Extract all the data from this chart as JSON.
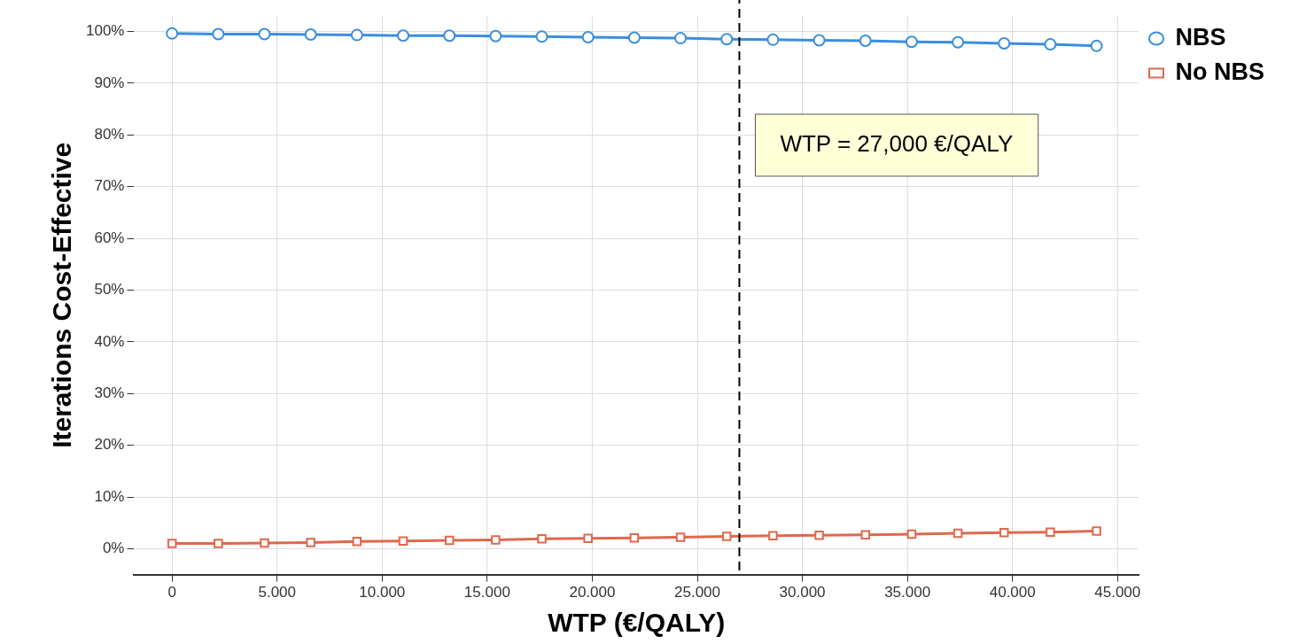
{
  "chart_data": {
    "type": "line",
    "xlabel": "WTP (€/QALY)",
    "ylabel": "Iterations Cost-Effective",
    "x": [
      0,
      2200,
      4400,
      6600,
      8800,
      11000,
      13200,
      15400,
      17600,
      19800,
      22000,
      24200,
      26400,
      28600,
      30800,
      33000,
      35200,
      37400,
      39600,
      41800,
      44000
    ],
    "series": [
      {
        "name": "NBS",
        "color": "#3a8ede",
        "marker": "circle",
        "values": [
          99.6,
          99.5,
          99.5,
          99.4,
          99.3,
          99.2,
          99.2,
          99.1,
          99.0,
          98.9,
          98.8,
          98.7,
          98.5,
          98.4,
          98.3,
          98.2,
          98.0,
          97.9,
          97.7,
          97.5,
          97.2
        ]
      },
      {
        "name": "No NBS",
        "color": "#e0684c",
        "marker": "square",
        "values": [
          1.0,
          1.0,
          1.1,
          1.2,
          1.4,
          1.5,
          1.6,
          1.7,
          1.9,
          2.0,
          2.1,
          2.2,
          2.4,
          2.5,
          2.6,
          2.7,
          2.8,
          3.0,
          3.1,
          3.2,
          3.4
        ]
      }
    ],
    "xlim": [
      -1800,
      46000
    ],
    "xticks": [
      0,
      {
        "value": 5000,
        "label": "5.000"
      },
      {
        "value": 10000,
        "label": "10.000"
      },
      {
        "value": 15000,
        "label": "15.000"
      },
      {
        "value": 20000,
        "label": "20.000"
      },
      {
        "value": 25000,
        "label": "25.000"
      },
      {
        "value": 30000,
        "label": "30.000"
      },
      {
        "value": 35000,
        "label": "35.000"
      },
      {
        "value": 40000,
        "label": "40.000"
      },
      {
        "value": 45000,
        "label": "45.000"
      }
    ],
    "ylim": [
      -5,
      103
    ],
    "yticks": [
      {
        "value": 0,
        "label": "0%"
      },
      {
        "value": 10,
        "label": "10%"
      },
      {
        "value": 20,
        "label": "20%"
      },
      {
        "value": 30,
        "label": "30%"
      },
      {
        "value": 40,
        "label": "40%"
      },
      {
        "value": 50,
        "label": "50%"
      },
      {
        "value": 60,
        "label": "60%"
      },
      {
        "value": 70,
        "label": "70%"
      },
      {
        "value": 80,
        "label": "80%"
      },
      {
        "value": 90,
        "label": "90%"
      },
      {
        "value": 100,
        "label": "100%"
      }
    ],
    "ref_lines": [
      {
        "axis": "x",
        "value": 27000,
        "color": "#000000",
        "line_style": "dashed"
      }
    ],
    "annotations": [
      "WTP = 27,000 €/QALY"
    ],
    "grid": true,
    "legend": "top right",
    "line_style": "solid"
  }
}
